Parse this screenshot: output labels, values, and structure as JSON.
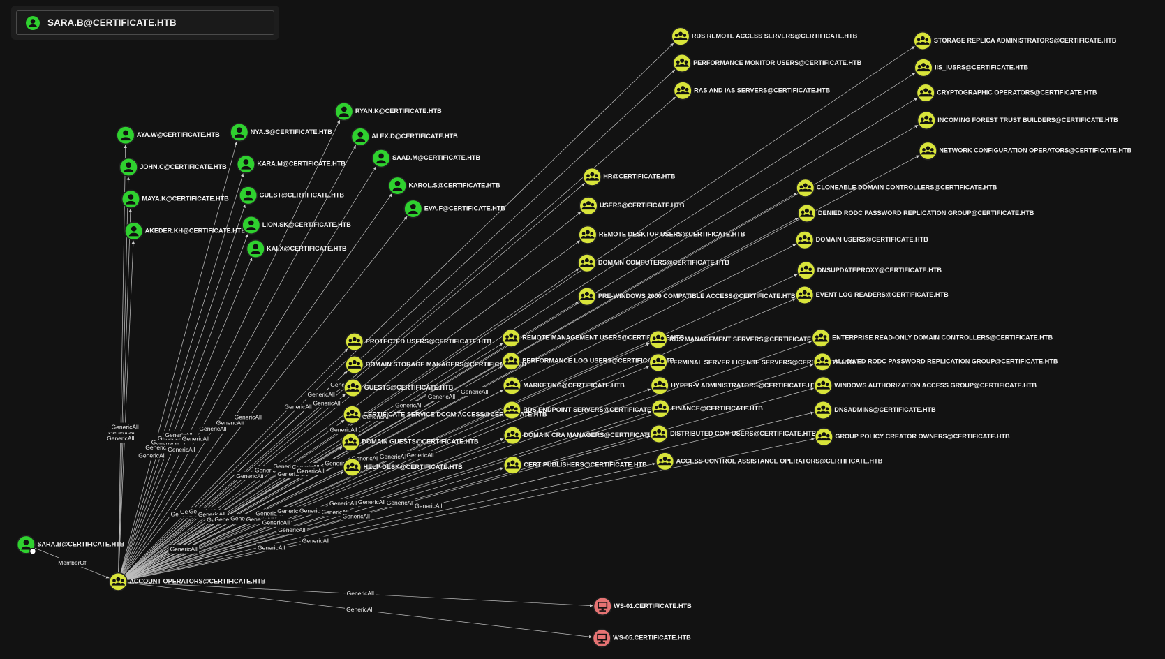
{
  "header": {
    "title": "SARA.B@CERTIFICATE.HTB"
  },
  "nodes": [
    {
      "label": "SARA.B@CERTIFICATE.HTB",
      "kind": "user"
    },
    {
      "label": "ACCOUNT OPERATORS@CERTIFICATE.HTB",
      "kind": "group"
    },
    {
      "label": "AYA.W@CERTIFICATE.HTB",
      "kind": "user"
    },
    {
      "label": "JOHN.C@CERTIFICATE.HTB",
      "kind": "user"
    },
    {
      "label": "MAYA.K@CERTIFICATE.HTB",
      "kind": "user"
    },
    {
      "label": "AKEDER.KH@CERTIFICATE.HTB",
      "kind": "user"
    },
    {
      "label": "NYA.S@CERTIFICATE.HTB",
      "kind": "user"
    },
    {
      "label": "KARA.M@CERTIFICATE.HTB",
      "kind": "user"
    },
    {
      "label": "GUEST@CERTIFICATE.HTB",
      "kind": "user"
    },
    {
      "label": "LION.SK@CERTIFICATE.HTB",
      "kind": "user"
    },
    {
      "label": "KAI.X@CERTIFICATE.HTB",
      "kind": "user"
    },
    {
      "label": "RYAN.K@CERTIFICATE.HTB",
      "kind": "user"
    },
    {
      "label": "ALEX.D@CERTIFICATE.HTB",
      "kind": "user"
    },
    {
      "label": "SAAD.M@CERTIFICATE.HTB",
      "kind": "user"
    },
    {
      "label": "KAROL.S@CERTIFICATE.HTB",
      "kind": "user"
    },
    {
      "label": "EVA.F@CERTIFICATE.HTB",
      "kind": "user"
    },
    {
      "label": "PROTECTED USERS@CERTIFICATE.HTB",
      "kind": "group"
    },
    {
      "label": "DOMAIN STORAGE MANAGERS@CERTIFICATE.HTB",
      "kind": "group"
    },
    {
      "label": "GUESTS@CERTIFICATE.HTB",
      "kind": "group"
    },
    {
      "label": "CERTIFICATE SERVICE DCOM ACCESS@CERTIFICATE.HTB",
      "kind": "group"
    },
    {
      "label": "DOMAIN GUESTS@CERTIFICATE.HTB",
      "kind": "group"
    },
    {
      "label": "HELP DESK@CERTIFICATE.HTB",
      "kind": "group"
    },
    {
      "label": "RDS REMOTE ACCESS SERVERS@CERTIFICATE.HTB",
      "kind": "group"
    },
    {
      "label": "PERFORMANCE MONITOR USERS@CERTIFICATE.HTB",
      "kind": "group"
    },
    {
      "label": "RAS AND IAS SERVERS@CERTIFICATE.HTB",
      "kind": "group"
    },
    {
      "label": "HR@CERTIFICATE.HTB",
      "kind": "group"
    },
    {
      "label": "USERS@CERTIFICATE.HTB",
      "kind": "group"
    },
    {
      "label": "REMOTE DESKTOP USERS@CERTIFICATE.HTB",
      "kind": "group"
    },
    {
      "label": "DOMAIN COMPUTERS@CERTIFICATE.HTB",
      "kind": "group"
    },
    {
      "label": "PRE-WINDOWS 2000 COMPATIBLE ACCESS@CERTIFICATE.HTB",
      "kind": "group"
    },
    {
      "label": "REMOTE MANAGEMENT USERS@CERTIFICATE.HTB",
      "kind": "group"
    },
    {
      "label": "PERFORMANCE LOG USERS@CERTIFICATE.HTB",
      "kind": "group"
    },
    {
      "label": "MARKETING@CERTIFICATE.HTB",
      "kind": "group"
    },
    {
      "label": "RDS ENDPOINT SERVERS@CERTIFICATE.HTB",
      "kind": "group"
    },
    {
      "label": "DOMAIN CRA MANAGERS@CERTIFICATE.HTB",
      "kind": "group"
    },
    {
      "label": "CERT PUBLISHERS@CERTIFICATE.HTB",
      "kind": "group"
    },
    {
      "label": "STORAGE REPLICA ADMINISTRATORS@CERTIFICATE.HTB",
      "kind": "group"
    },
    {
      "label": "IIS_IUSRS@CERTIFICATE.HTB",
      "kind": "group"
    },
    {
      "label": "CRYPTOGRAPHIC OPERATORS@CERTIFICATE.HTB",
      "kind": "group"
    },
    {
      "label": "INCOMING FOREST TRUST BUILDERS@CERTIFICATE.HTB",
      "kind": "group"
    },
    {
      "label": "NETWORK CONFIGURATION OPERATORS@CERTIFICATE.HTB",
      "kind": "group"
    },
    {
      "label": "CLONEABLE DOMAIN CONTROLLERS@CERTIFICATE.HTB",
      "kind": "group"
    },
    {
      "label": "DENIED RODC PASSWORD REPLICATION GROUP@CERTIFICATE.HTB",
      "kind": "group"
    },
    {
      "label": "DOMAIN USERS@CERTIFICATE.HTB",
      "kind": "group"
    },
    {
      "label": "DNSUPDATEPROXY@CERTIFICATE.HTB",
      "kind": "group"
    },
    {
      "label": "EVENT LOG READERS@CERTIFICATE.HTB",
      "kind": "group"
    },
    {
      "label": "RDS MANAGEMENT SERVERS@CERTIFICATE.HTB",
      "kind": "group"
    },
    {
      "label": "TERMINAL SERVER LICENSE SERVERS@CERTIFICATE.HTB",
      "kind": "group"
    },
    {
      "label": "HYPER-V ADMINISTRATORS@CERTIFICATE.HTB",
      "kind": "group"
    },
    {
      "label": "FINANCE@CERTIFICATE.HTB",
      "kind": "group"
    },
    {
      "label": "DISTRIBUTED COM USERS@CERTIFICATE.HTB",
      "kind": "group"
    },
    {
      "label": "ACCESS CONTROL ASSISTANCE OPERATORS@CERTIFICATE.HTB",
      "kind": "group"
    },
    {
      "label": "ENTERPRISE READ-ONLY DOMAIN CONTROLLERS@CERTIFICATE.HTB",
      "kind": "group"
    },
    {
      "label": "ALLOWED RODC PASSWORD REPLICATION GROUP@CERTIFICATE.HTB",
      "kind": "group"
    },
    {
      "label": "WINDOWS AUTHORIZATION ACCESS GROUP@CERTIFICATE.HTB",
      "kind": "group"
    },
    {
      "label": "DNSADMINS@CERTIFICATE.HTB",
      "kind": "group"
    },
    {
      "label": "GROUP POLICY CREATOR OWNERS@CERTIFICATE.HTB",
      "kind": "group"
    },
    {
      "label": "WS-01.CERTIFICATE.HTB",
      "kind": "computer"
    },
    {
      "label": "WS-05.CERTIFICATE.HTB",
      "kind": "computer"
    }
  ],
  "edges": [
    {
      "label": "MemberOf"
    },
    {
      "label": "GenericAll"
    },
    {
      "label": "GenericAll"
    },
    {
      "label": "GenericAll"
    },
    {
      "label": "GenericAll"
    },
    {
      "label": "GenericAll"
    },
    {
      "label": "GenericAll"
    },
    {
      "label": "GenericAll"
    },
    {
      "label": "GenericAll"
    },
    {
      "label": "GenericAll"
    },
    {
      "label": "GenericAll"
    },
    {
      "label": "GenericAll"
    },
    {
      "label": "GenericAll"
    },
    {
      "label": "GenericAll"
    },
    {
      "label": "GenericAll"
    },
    {
      "label": "GenericAll"
    },
    {
      "label": "GenericAll"
    },
    {
      "label": "GenericAll"
    },
    {
      "label": "GenericAll"
    },
    {
      "label": "GenericAll"
    },
    {
      "label": "GenericAll"
    },
    {
      "label": "GenericAll"
    },
    {
      "label": "GenericAll"
    },
    {
      "label": "GenericAll"
    },
    {
      "label": "GenericAll"
    },
    {
      "label": "GenericAll"
    },
    {
      "label": "GenericAll"
    },
    {
      "label": "GenericAll"
    },
    {
      "label": "GenericAll"
    },
    {
      "label": "GenericAll"
    },
    {
      "label": "GenericAll"
    },
    {
      "label": "GenericAll"
    },
    {
      "label": "GenericAll"
    },
    {
      "label": "GenericAll"
    },
    {
      "label": "GenericAll"
    },
    {
      "label": "GenericAll"
    },
    {
      "label": "GenericAll"
    },
    {
      "label": "GenericAll"
    },
    {
      "label": "GenericAll"
    },
    {
      "label": "GenericAll"
    },
    {
      "label": "GenericAll"
    },
    {
      "label": "GenericAll"
    },
    {
      "label": "GenericAll"
    },
    {
      "label": "GenericAll"
    },
    {
      "label": "GenericAll"
    },
    {
      "label": "GenericAll"
    },
    {
      "label": "GenericAll"
    },
    {
      "label": "GenericAll"
    },
    {
      "label": "GenericAll"
    },
    {
      "label": "GenericAll"
    },
    {
      "label": "GenericAll"
    },
    {
      "label": "GenericAll"
    },
    {
      "label": "GenericAll"
    },
    {
      "label": "GenericAll"
    },
    {
      "label": "GenericAll"
    },
    {
      "label": "GenericAll"
    },
    {
      "label": "GenericAll"
    },
    {
      "label": "GenericAll"
    },
    {
      "label": "GenericAll"
    }
  ]
}
